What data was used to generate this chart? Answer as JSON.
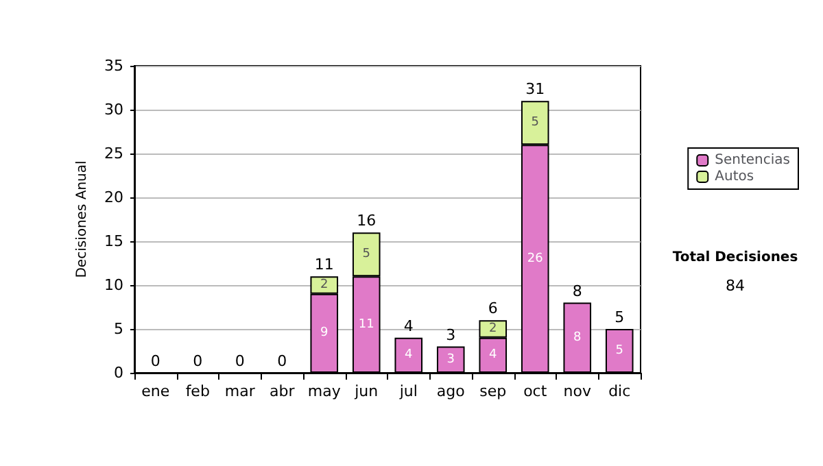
{
  "chart_data": {
    "type": "bar",
    "ylabel": "Decisiones Anual",
    "categories": [
      "ene",
      "feb",
      "mar",
      "abr",
      "may",
      "jun",
      "jul",
      "ago",
      "sep",
      "oct",
      "nov",
      "dic"
    ],
    "stacked": true,
    "series": [
      {
        "name": "Sentencias",
        "color": "#e07ac8",
        "values": [
          0,
          0,
          0,
          0,
          9,
          11,
          4,
          3,
          4,
          26,
          8,
          5
        ],
        "value_labels": [
          null,
          null,
          null,
          null,
          "9",
          "11",
          "4",
          "3",
          "4",
          "26",
          "8",
          "5"
        ]
      },
      {
        "name": "Autos",
        "color": "#d8f19a",
        "values": [
          0,
          0,
          0,
          0,
          2,
          5,
          0,
          0,
          2,
          5,
          0,
          0
        ],
        "value_labels": [
          null,
          null,
          null,
          null,
          "2",
          "5",
          null,
          null,
          "2",
          "5",
          null,
          null
        ]
      }
    ],
    "totals": [
      "0",
      "0",
      "0",
      "0",
      "11",
      "16",
      "4",
      "3",
      "6",
      "31",
      "8",
      "5"
    ],
    "ylim": [
      0,
      35
    ],
    "yticks": [
      0,
      5,
      10,
      15,
      20,
      25,
      30,
      35
    ],
    "grid": "y",
    "legend": "right",
    "annotations": [
      "Total Decisiones",
      "84"
    ]
  }
}
